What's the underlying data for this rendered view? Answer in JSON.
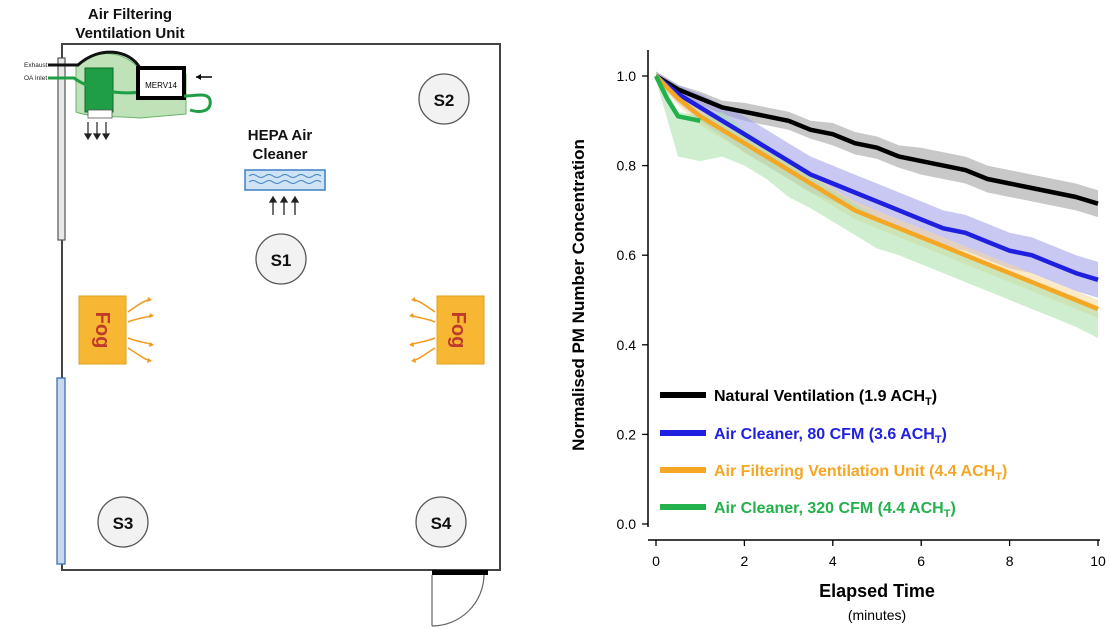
{
  "floorplan": {
    "unit_title_line1": "Air Filtering",
    "unit_title_line2": "Ventilation Unit",
    "exhaust_label": "Exhaust",
    "oa_inlet_label": "OA Inlet",
    "filter_label": "MERV14",
    "hepa_label_line1": "HEPA Air",
    "hepa_label_line2": "Cleaner",
    "sensors": [
      "S1",
      "S2",
      "S3",
      "S4"
    ],
    "fog_label": "Fog",
    "colors": {
      "fog_fill": "#f7b733",
      "fog_text": "#c0392b",
      "unit_green": "#22a84a",
      "hepa_blue": "#3b7fc4"
    }
  },
  "chart_data": {
    "type": "line",
    "xlabel": "Elapsed Time",
    "xlabel_sub": "(minutes)",
    "ylabel": "Normalised PM Number Concentration",
    "xlim": [
      0,
      10
    ],
    "ylim": [
      0,
      1.0
    ],
    "xticks": [
      0,
      2,
      4,
      6,
      8,
      10
    ],
    "yticks": [
      0.0,
      0.2,
      0.4,
      0.6,
      0.8,
      1.0
    ],
    "ytick_labels": [
      "0.0",
      "0.2",
      "0.4",
      "0.6",
      "0.8",
      "1.0"
    ],
    "legend_position": "bottom-left",
    "series": [
      {
        "name_main": "Natural Ventilation (1.9 ACH",
        "name_sub": "T",
        "name_tail": ")",
        "color": "#000000",
        "band_color": "#9a9a9a",
        "x": [
          0,
          0.5,
          1,
          1.5,
          2,
          2.5,
          3,
          3.5,
          4,
          4.5,
          5,
          5.5,
          6,
          6.5,
          7,
          7.5,
          8,
          8.5,
          9,
          9.5,
          10
        ],
        "y": [
          1.0,
          0.97,
          0.95,
          0.93,
          0.92,
          0.91,
          0.9,
          0.88,
          0.87,
          0.85,
          0.84,
          0.82,
          0.81,
          0.8,
          0.79,
          0.77,
          0.76,
          0.75,
          0.74,
          0.73,
          0.715
        ],
        "band": [
          0.01,
          0.01,
          0.015,
          0.015,
          0.02,
          0.02,
          0.02,
          0.02,
          0.025,
          0.025,
          0.025,
          0.025,
          0.03,
          0.03,
          0.03,
          0.03,
          0.03,
          0.03,
          0.03,
          0.03,
          0.03
        ]
      },
      {
        "name_main": "Air Cleaner, 80 CFM (3.6 ACH",
        "name_sub": "T",
        "name_tail": ")",
        "color": "#1f1fe0",
        "band_color": "#9a9ae8",
        "x": [
          0,
          0.5,
          1,
          1.5,
          2,
          2.5,
          3,
          3.5,
          4,
          4.5,
          5,
          5.5,
          6,
          6.5,
          7,
          7.5,
          8,
          8.5,
          9,
          9.5,
          10
        ],
        "y": [
          1.0,
          0.96,
          0.93,
          0.9,
          0.87,
          0.84,
          0.81,
          0.78,
          0.76,
          0.74,
          0.72,
          0.7,
          0.68,
          0.66,
          0.65,
          0.63,
          0.61,
          0.6,
          0.58,
          0.56,
          0.545
        ],
        "band": [
          0.01,
          0.02,
          0.03,
          0.035,
          0.04,
          0.04,
          0.04,
          0.04,
          0.04,
          0.04,
          0.04,
          0.04,
          0.04,
          0.04,
          0.04,
          0.04,
          0.04,
          0.04,
          0.04,
          0.04,
          0.04
        ]
      },
      {
        "name_main": "Air Filtering Ventilation Unit (4.4 ACH",
        "name_sub": "T",
        "name_tail": ")",
        "color": "#f5a623",
        "band_color": "#f7d89a",
        "x": [
          0,
          0.5,
          1,
          1.5,
          2,
          2.5,
          3,
          3.5,
          4,
          4.5,
          5,
          5.5,
          6,
          6.5,
          7,
          7.5,
          8,
          8.5,
          9,
          9.5,
          10
        ],
        "y": [
          1.0,
          0.95,
          0.91,
          0.88,
          0.85,
          0.82,
          0.79,
          0.76,
          0.73,
          0.7,
          0.68,
          0.66,
          0.64,
          0.62,
          0.6,
          0.58,
          0.56,
          0.54,
          0.52,
          0.5,
          0.48
        ],
        "band": [
          0.01,
          0.015,
          0.02,
          0.02,
          0.02,
          0.02,
          0.02,
          0.02,
          0.02,
          0.02,
          0.02,
          0.02,
          0.02,
          0.02,
          0.02,
          0.02,
          0.02,
          0.02,
          0.02,
          0.02,
          0.02
        ]
      },
      {
        "name_main": "Air Cleaner, 320 CFM (4.4 ACH",
        "name_sub": "T",
        "name_tail": ")",
        "color": "#22b14c",
        "band_color": "#a8e0a8",
        "x": [
          0,
          0.25,
          0.5,
          1
        ],
        "y": [
          1.0,
          0.95,
          0.91,
          0.9
        ],
        "band_x": [
          0,
          0.5,
          1,
          1.5,
          2,
          2.5,
          3,
          3.5,
          4,
          4.5,
          5,
          5.5,
          6,
          6.5,
          7,
          7.5,
          8,
          8.5,
          9,
          9.5,
          10
        ],
        "band_y": [
          1.0,
          0.87,
          0.86,
          0.87,
          0.84,
          0.81,
          0.77,
          0.74,
          0.71,
          0.68,
          0.65,
          0.63,
          0.61,
          0.59,
          0.57,
          0.55,
          0.53,
          0.51,
          0.49,
          0.47,
          0.445
        ],
        "band": [
          0.01,
          0.05,
          0.05,
          0.05,
          0.04,
          0.04,
          0.04,
          0.035,
          0.035,
          0.035,
          0.035,
          0.03,
          0.03,
          0.03,
          0.03,
          0.03,
          0.03,
          0.03,
          0.03,
          0.03,
          0.03
        ]
      }
    ]
  }
}
